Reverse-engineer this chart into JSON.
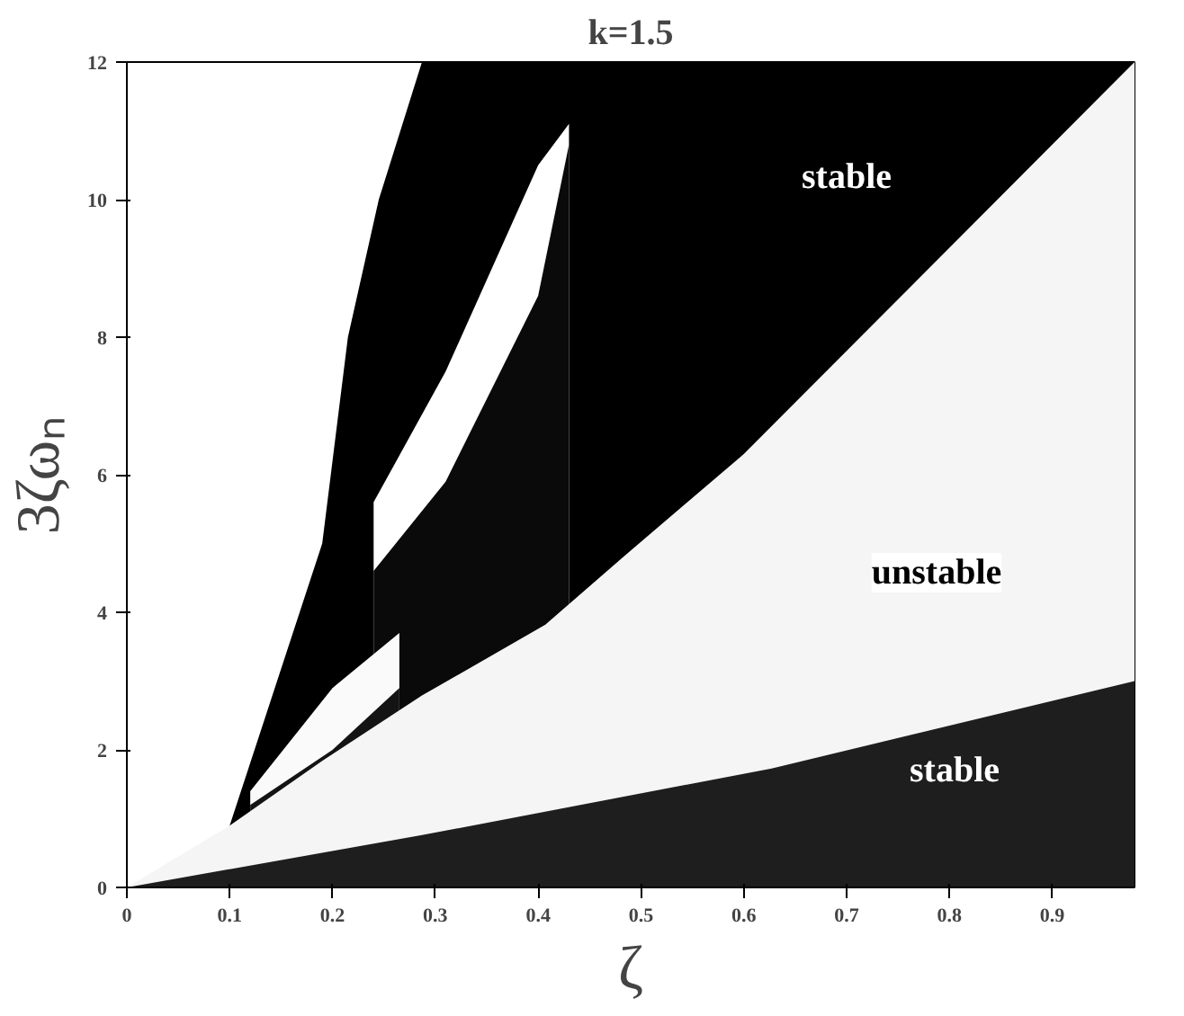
{
  "chart_data": {
    "type": "area",
    "title": "k=1.5",
    "xlabel": "ζ",
    "ylabel": "3ζωₙ",
    "xlim": [
      0,
      0.98
    ],
    "ylim": [
      0,
      12
    ],
    "xticks": [
      0,
      0.1,
      0.2,
      0.3,
      0.4,
      0.5,
      0.6,
      0.7,
      0.8,
      0.9
    ],
    "yticks": [
      0,
      2,
      4,
      6,
      8,
      10,
      12
    ],
    "grid": false,
    "series": [
      {
        "color": "#000000",
        "x": [
          0.1,
          0.19,
          0.215,
          0.245,
          0.287,
          0.98
        ],
        "values": [
          0.9,
          5.0,
          8.0,
          10.0,
          12,
          12
        ]
      },
      {
        "color": "#ffffff",
        "x": [
          0.24,
          0.31,
          0.4,
          0.43
        ],
        "values": [
          5.6,
          7.5,
          10.5,
          11.1
        ]
      },
      {
        "color": "#0a0a0a",
        "x": [
          0.24,
          0.31,
          0.4,
          0.43
        ],
        "values": [
          4.6,
          5.9,
          8.6,
          10.8
        ]
      },
      {
        "color": "#fafafa",
        "x": [
          0.12,
          0.2,
          0.265
        ],
        "values": [
          1.4,
          2.9,
          3.7
        ]
      },
      {
        "color": "#141414",
        "x": [
          0.12,
          0.2,
          0.265
        ],
        "values": [
          1.2,
          2.0,
          2.9
        ]
      },
      {
        "color": "#f5f5f5",
        "x": [
          0,
          0.1,
          0.19,
          0.287,
          0.407,
          0.484,
          0.6,
          0.98
        ],
        "values": [
          0,
          0.9,
          1.84,
          2.79,
          3.82,
          4.82,
          6.3,
          12
        ]
      },
      {
        "color": "#1e1e1e",
        "x": [
          0,
          0.287,
          0.627,
          0.98
        ],
        "values": [
          0,
          0.76,
          1.73,
          3.0
        ]
      }
    ],
    "annotations": [
      "stable",
      "unstable",
      "stable"
    ]
  }
}
